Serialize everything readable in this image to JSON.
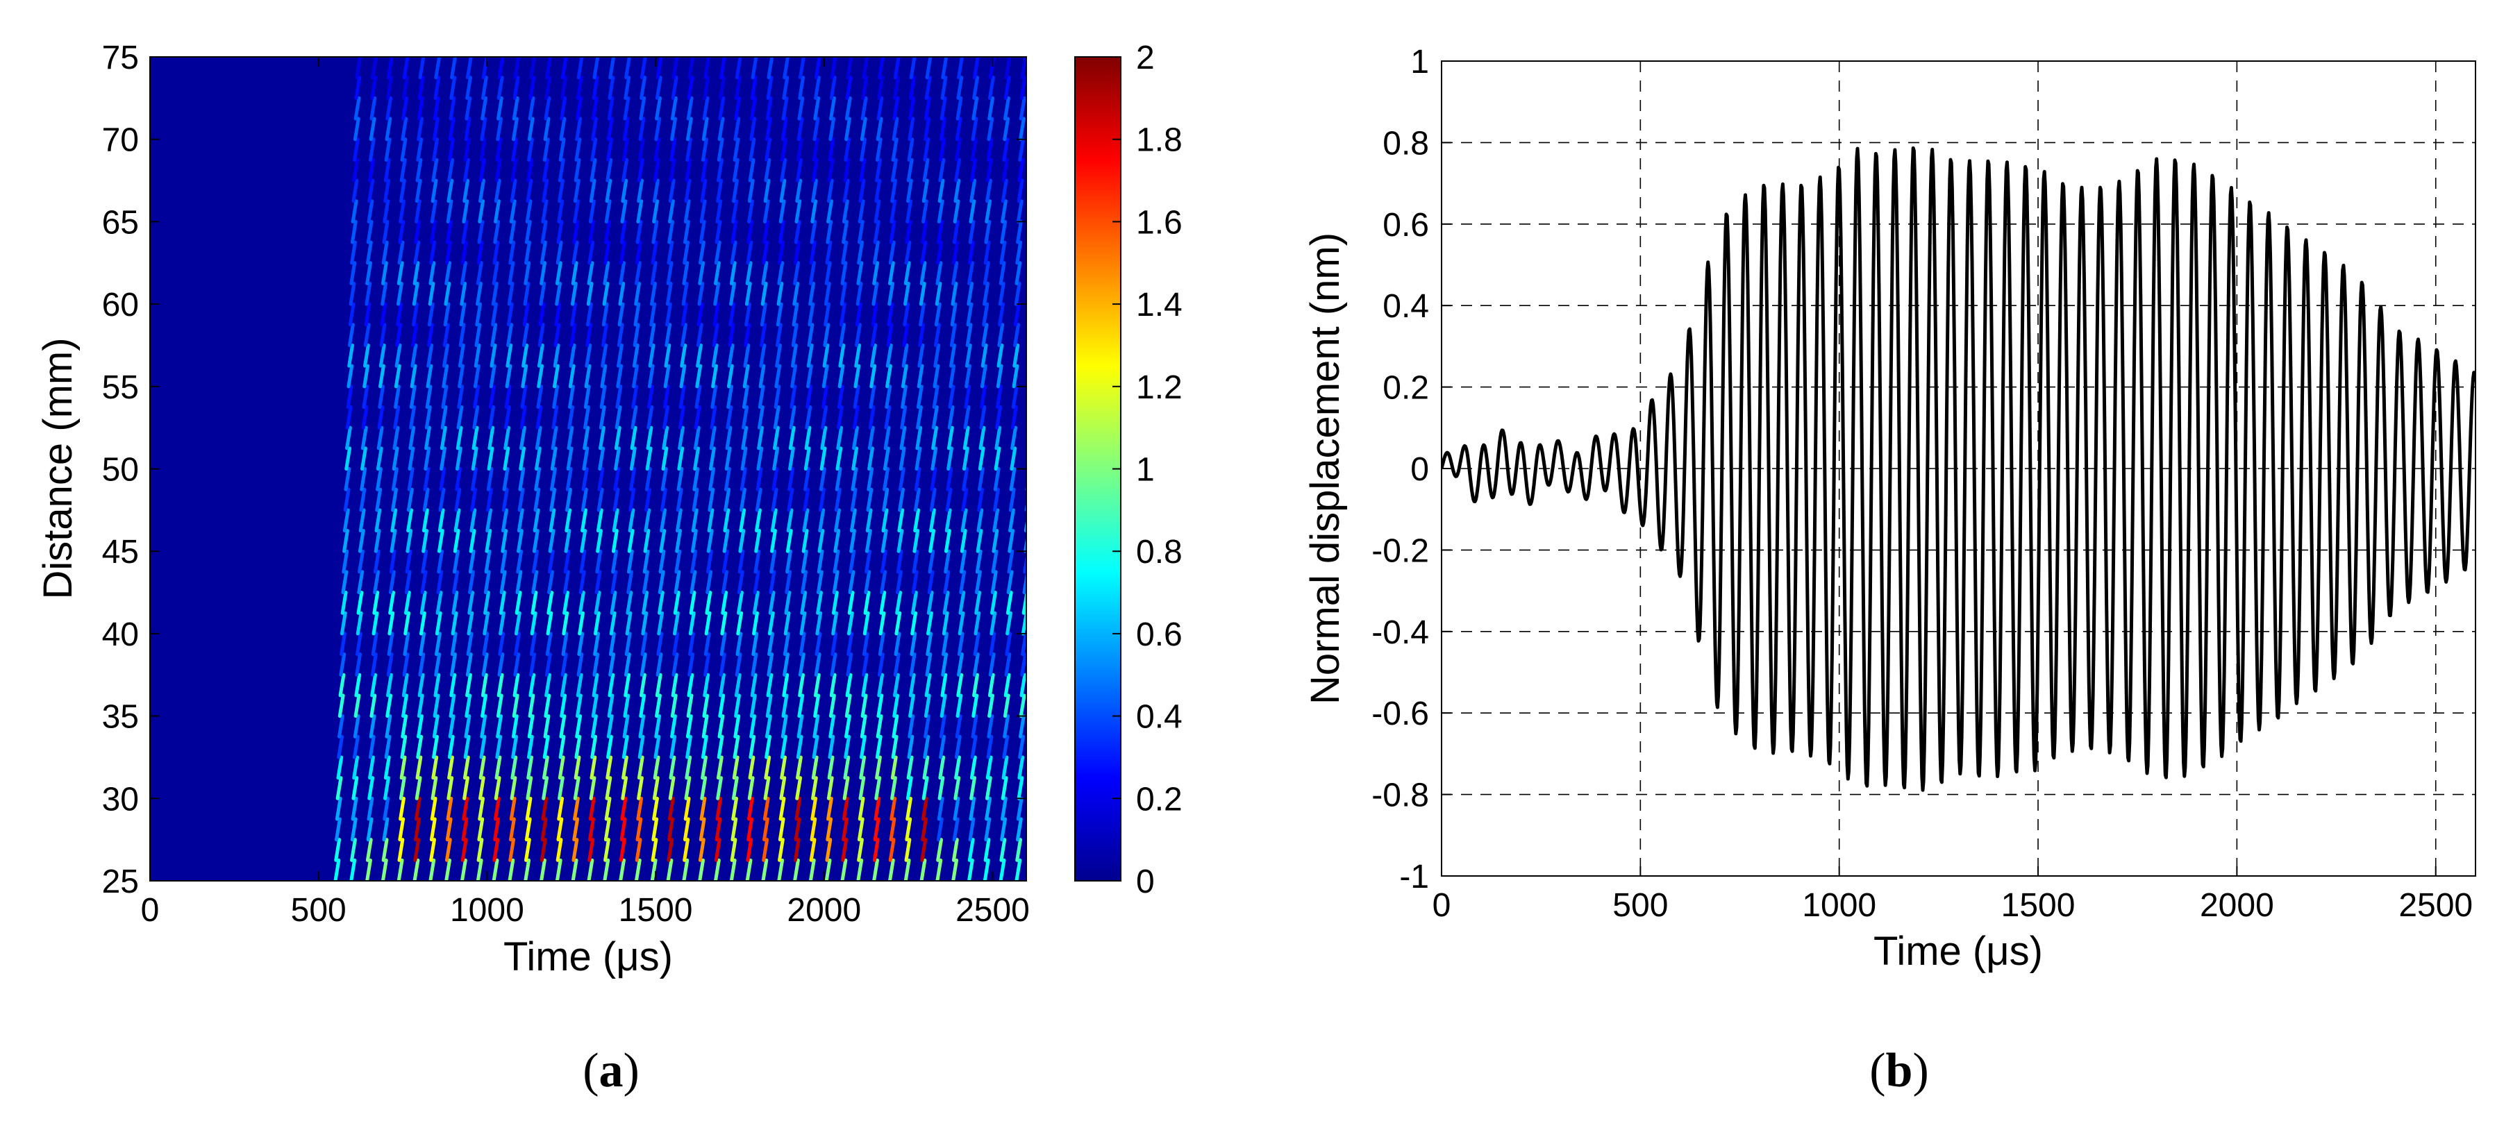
{
  "panels": {
    "a": {
      "label_open": "(",
      "label_letter": "a",
      "label_close": ")"
    },
    "b": {
      "label_open": "(",
      "label_letter": "b",
      "label_close": ")"
    }
  },
  "chart_data": [
    {
      "type": "heatmap",
      "panel": "a",
      "title": "",
      "xlabel": "Time (μs)",
      "ylabel": "Distance (mm)",
      "xlim": [
        0,
        2600
      ],
      "ylim": [
        25,
        75
      ],
      "xticks": [
        0,
        500,
        1000,
        1500,
        2000,
        2500
      ],
      "yticks": [
        25,
        30,
        35,
        40,
        45,
        50,
        55,
        60,
        65,
        70,
        75
      ],
      "colormap": "jet",
      "colorbar": {
        "range": [
          0,
          2
        ],
        "ticks": [
          0,
          0.2,
          0.4,
          0.6,
          0.8,
          1,
          1.2,
          1.4,
          1.6,
          1.8,
          2
        ],
        "tick_labels": [
          "0",
          "0.2",
          "0.4",
          "0.6",
          "0.8",
          "1",
          "1.2",
          "1.4",
          "1.6",
          "1.8",
          "2"
        ],
        "colors": [
          "#00008f",
          "#0000ff",
          "#00ffff",
          "#ffff00",
          "#ff0000",
          "#800000"
        ]
      },
      "field": {
        "background_value": 0.05,
        "wave_onset_us": 550,
        "wave_period_us": 47,
        "band_spacing_mm": 5,
        "peak_band_distance_mm": [
          26,
          28
        ],
        "peak_value": 1.9,
        "peak_time_range_us": [
          700,
          2300
        ]
      },
      "grid": false,
      "legend": "none"
    },
    {
      "type": "line",
      "panel": "b",
      "title": "",
      "xlabel": "Time (μs)",
      "ylabel": "Normal displacement (nm)",
      "xlim": [
        0,
        2600
      ],
      "ylim": [
        -1,
        1
      ],
      "xticks": [
        0,
        500,
        1000,
        1500,
        2000,
        2500
      ],
      "yticks": [
        -1,
        -0.8,
        -0.6,
        -0.4,
        -0.2,
        0,
        0.2,
        0.4,
        0.6,
        0.8,
        1
      ],
      "ytick_labels": [
        "-1",
        "-0.8",
        "-0.6",
        "-0.4",
        "-0.2",
        "0",
        "0.2",
        "0.4",
        "0.6",
        "0.8",
        "1"
      ],
      "grid": true,
      "grid_style": "dashed",
      "line_color": "#000000",
      "signal": {
        "period_us": 47,
        "envelope_t": [
          0,
          100,
          200,
          300,
          450,
          500,
          600,
          700,
          800,
          900,
          1000,
          1050,
          1100,
          1200,
          1300,
          1400,
          1500,
          1600,
          1700,
          1800,
          1900,
          2000,
          2100,
          2200,
          2300,
          2400,
          2500,
          2600
        ],
        "envelope_a": [
          0.02,
          0.07,
          0.07,
          0.05,
          0.09,
          0.14,
          0.26,
          0.57,
          0.67,
          0.72,
          0.8,
          0.84,
          0.8,
          0.76,
          0.7,
          0.74,
          0.78,
          0.74,
          0.71,
          0.72,
          0.7,
          0.68,
          0.66,
          0.58,
          0.47,
          0.32,
          0.28,
          0.24
        ]
      },
      "legend": "none"
    }
  ]
}
